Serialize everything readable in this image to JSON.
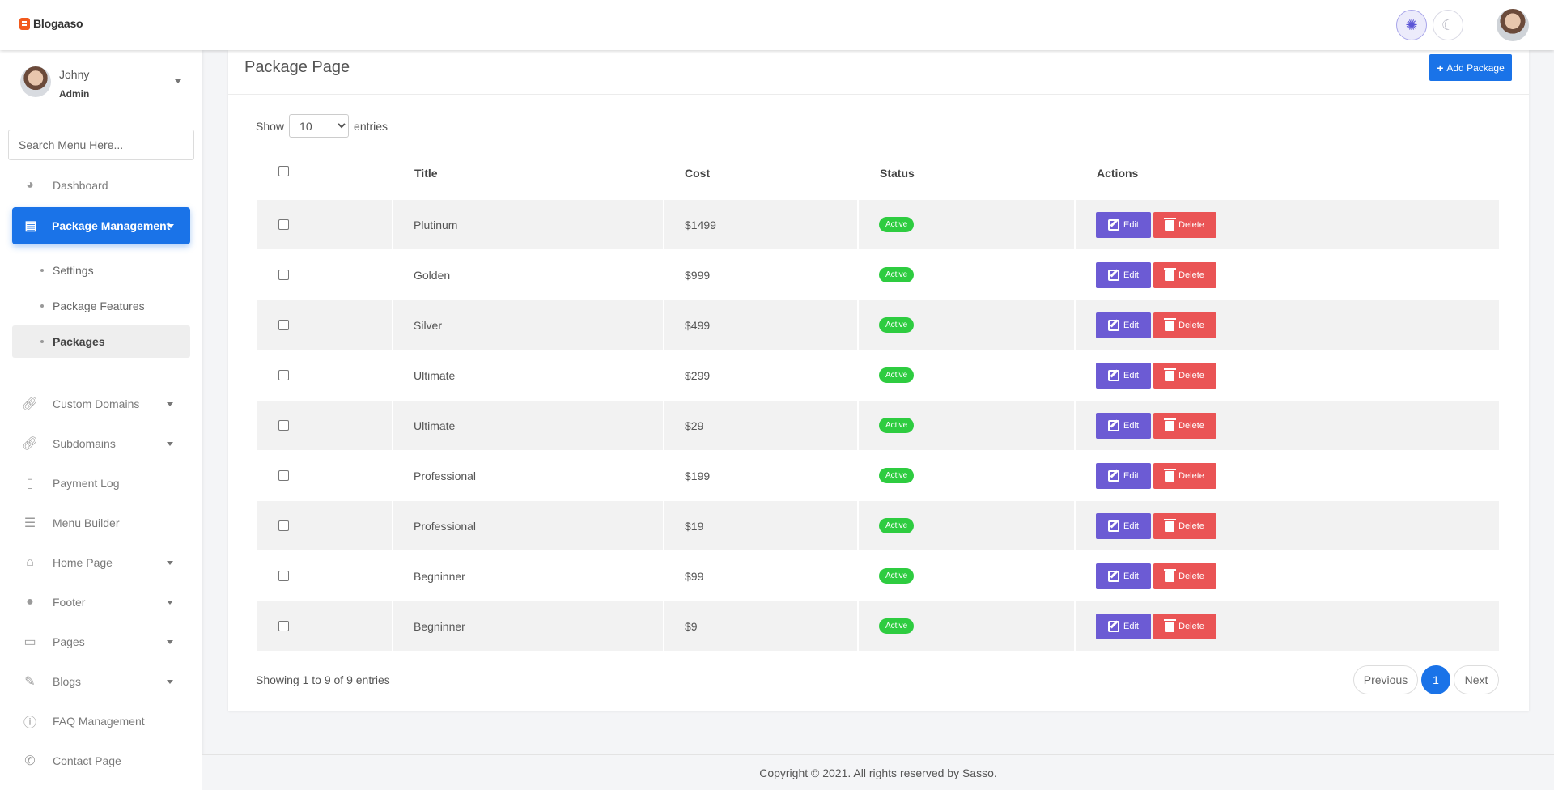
{
  "header": {
    "logo_text": "Blogaaso",
    "light_mode_icon": "sun-icon",
    "dark_mode_icon": "moon-icon"
  },
  "sidebar": {
    "profile": {
      "name": "Johny",
      "role": "Admin"
    },
    "search_placeholder": "Search Menu Here...",
    "items": [
      {
        "label": "Dashboard",
        "icon": "palette-icon"
      },
      {
        "label": "Package Management",
        "icon": "receipt-icon",
        "active": true
      },
      {
        "label": "Custom Domains",
        "icon": "link-icon"
      },
      {
        "label": "Subdomains",
        "icon": "link-icon"
      },
      {
        "label": "Payment Log",
        "icon": "invoice-icon"
      },
      {
        "label": "Menu Builder",
        "icon": "bars-icon"
      },
      {
        "label": "Home Page",
        "icon": "home-icon"
      },
      {
        "label": "Footer",
        "icon": "shoe-prints-icon"
      },
      {
        "label": "Pages",
        "icon": "file-icon"
      },
      {
        "label": "Blogs",
        "icon": "blog-icon"
      },
      {
        "label": "FAQ Management",
        "icon": "question-circle-icon"
      },
      {
        "label": "Contact Page",
        "icon": "whatsapp-icon"
      }
    ],
    "sub_items": [
      {
        "label": "Settings"
      },
      {
        "label": "Package Features"
      },
      {
        "label": "Packages",
        "active": true
      }
    ]
  },
  "main": {
    "title": "Package Page",
    "add_button": "Add Package",
    "show_label": "Show",
    "entries_label": "entries",
    "page_size": "10",
    "columns": [
      "Title",
      "Cost",
      "Status",
      "Actions"
    ],
    "rows": [
      {
        "title": "Plutinum",
        "cost": "$1499",
        "status": "Active"
      },
      {
        "title": "Golden",
        "cost": "$999",
        "status": "Active"
      },
      {
        "title": "Silver",
        "cost": "$499",
        "status": "Active"
      },
      {
        "title": "Ultimate",
        "cost": "$299",
        "status": "Active"
      },
      {
        "title": "Ultimate",
        "cost": "$29",
        "status": "Active"
      },
      {
        "title": "Professional",
        "cost": "$199",
        "status": "Active"
      },
      {
        "title": "Professional",
        "cost": "$19",
        "status": "Active"
      },
      {
        "title": "Begninner",
        "cost": "$99",
        "status": "Active"
      },
      {
        "title": "Begninner",
        "cost": "$9",
        "status": "Active"
      }
    ],
    "edit_label": "Edit",
    "delete_label": "Delete",
    "info": "Showing 1 to 9 of 9 entries",
    "pagination": {
      "previous": "Previous",
      "current": "1",
      "next": "Next"
    }
  },
  "footer": {
    "copyright": "Copyright © 2021. All rights reserved by Sasso."
  },
  "colors": {
    "primary": "#1a73e8",
    "edit": "#6c5bd4",
    "delete": "#ea5455",
    "active": "#2ecc40"
  }
}
